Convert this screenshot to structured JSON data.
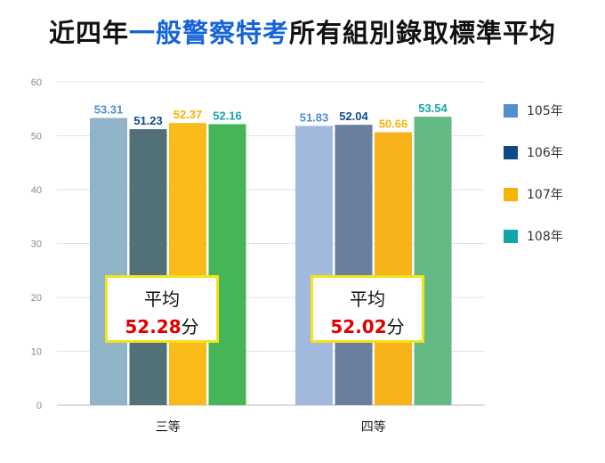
{
  "title": {
    "part1": "近四年",
    "highlight": "一般警察特考",
    "part2": "所有組別錄取標準平均"
  },
  "colors": {
    "title_highlight": "#1565d8",
    "avg_value": "#e00000",
    "avg_border": "#f4e21a"
  },
  "chart_data": {
    "type": "bar",
    "categories": [
      "三等",
      "四等"
    ],
    "series": [
      {
        "name": "105年",
        "values": [
          53.31,
          51.83
        ],
        "legend_color": "#4f8fcb",
        "bar_colors": [
          "#8fb4c8",
          "#a3b8dd"
        ],
        "label_color": "#4f8fcb"
      },
      {
        "name": "106年",
        "values": [
          51.23,
          52.04
        ],
        "legend_color": "#0f4a86",
        "bar_colors": [
          "#527078",
          "#6a7fa0"
        ],
        "label_color": "#0f4a86"
      },
      {
        "name": "107年",
        "values": [
          52.37,
          50.66
        ],
        "legend_color": "#f5b400",
        "bar_colors": [
          "#f8bb1a",
          "#f8b21a"
        ],
        "label_color": "#f5b400"
      },
      {
        "name": "108年",
        "values": [
          52.16,
          53.54
        ],
        "legend_color": "#12a5a5",
        "bar_colors": [
          "#45b558",
          "#64ba84"
        ],
        "label_color": "#12a5a5"
      }
    ],
    "ylim": [
      0,
      60
    ],
    "yticks": [
      0,
      10,
      20,
      30,
      40,
      50,
      60
    ],
    "grid": true,
    "legend_position": "right",
    "averages": [
      {
        "category": "三等",
        "label": "平均",
        "value": "52.28",
        "unit": "分"
      },
      {
        "category": "四等",
        "label": "平均",
        "value": "52.02",
        "unit": "分"
      }
    ]
  }
}
